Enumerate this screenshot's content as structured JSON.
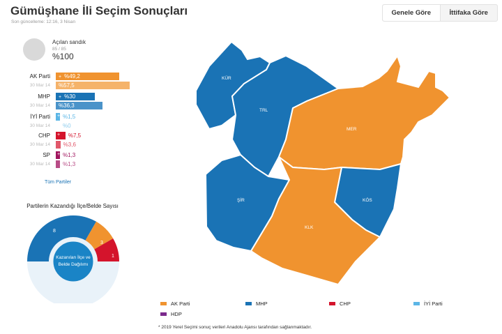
{
  "header": {
    "title": "Gümüşhane İli Seçim Sonuçları",
    "updated": "Son güncelleme: 12:16, 3 Nisan",
    "tabs": [
      "Genele Göre",
      "İttifaka Göre"
    ]
  },
  "summary": {
    "label": "Açılan sandık",
    "count": "85 / 85",
    "percent": "%100",
    "percent_value": 100
  },
  "parties": [
    {
      "name": "AK Parti",
      "value": "%49,2",
      "value_num": 49.2,
      "prev_label": "30 Mar 14",
      "prev_value": "%57,5",
      "prev_num": 57.5,
      "color": "#f0932f",
      "prev_color": "#f5b36a",
      "sign": "+"
    },
    {
      "name": "MHP",
      "value": "%30",
      "value_num": 30,
      "prev_label": "30 Mar 14",
      "prev_value": "%36,3",
      "prev_num": 36.3,
      "color": "#1a73b5",
      "prev_color": "#4a93c9",
      "sign": "+"
    },
    {
      "name": "İYİ Parti",
      "value": "%1,5",
      "value_num": 1.5,
      "prev_label": "30 Mar 14",
      "prev_value": "%0",
      "prev_num": 0,
      "color": "#5bb6e6",
      "prev_color": "#8ccced",
      "sign": "+"
    },
    {
      "name": "CHP",
      "value": "%7,5",
      "value_num": 7.5,
      "prev_label": "30 Mar 14",
      "prev_value": "%3,6",
      "prev_num": 3.6,
      "color": "#d4142c",
      "prev_color": "#e1586a",
      "sign": "+"
    },
    {
      "name": "SP",
      "value": "%1,3",
      "value_num": 1.3,
      "prev_label": "30 Mar 14",
      "prev_value": "%1,3",
      "prev_num": 1.3,
      "color": "#a0155e",
      "prev_color": "#b84c86",
      "sign": "+"
    }
  ],
  "all_parties_link": "Tüm Partiler",
  "won_chart": {
    "title": "Partilerin Kazandığı İlçe/Belde Sayısı",
    "center_text": "Kazanılan İlçe ve Belde Dağılımı",
    "segments": [
      {
        "label": "8",
        "value": 8,
        "color": "#1a73b5"
      },
      {
        "label": "3",
        "value": 3,
        "color": "#f0932f"
      },
      {
        "label": "1",
        "value": 1,
        "color": "#d4142c"
      }
    ]
  },
  "map": {
    "districts": [
      {
        "label": "KÜR",
        "party": "MHP",
        "color": "#1a73b5"
      },
      {
        "label": "TRL",
        "party": "MHP",
        "color": "#1a73b5"
      },
      {
        "label": "MER",
        "party": "AK Parti",
        "color": "#f0932f"
      },
      {
        "label": "ŞİR",
        "party": "MHP",
        "color": "#1a73b5"
      },
      {
        "label": "KÖS",
        "party": "MHP",
        "color": "#1a73b5"
      },
      {
        "label": "KLK",
        "party": "AK Parti",
        "color": "#f0932f"
      }
    ]
  },
  "legend": [
    {
      "label": "AK Parti",
      "color": "#f0932f"
    },
    {
      "label": "MHP",
      "color": "#1a73b5"
    },
    {
      "label": "CHP",
      "color": "#d4142c"
    },
    {
      "label": "İYİ Parti",
      "color": "#5bb6e6"
    },
    {
      "label": "HDP",
      "color": "#7b2a8c"
    }
  ],
  "footnote": "* 2019 Yerel Seçimi sonuç verileri Anadolu Ajansı tarafından sağlanmaktadır."
}
